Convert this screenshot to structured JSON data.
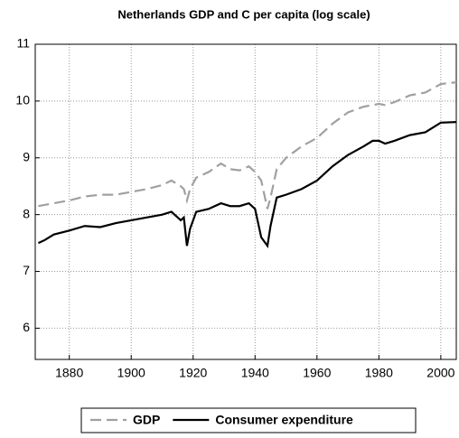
{
  "chart_data": {
    "type": "line",
    "title": "Netherlands GDP and C per capita (log scale)",
    "x": [
      1870,
      1872,
      1875,
      1880,
      1885,
      1890,
      1895,
      1900,
      1905,
      1910,
      1913,
      1916,
      1917,
      1918,
      1919,
      1921,
      1925,
      1929,
      1932,
      1935,
      1938,
      1940,
      1942,
      1944,
      1945,
      1947,
      1950,
      1955,
      1960,
      1965,
      1970,
      1975,
      1978,
      1980,
      1982,
      1985,
      1990,
      1995,
      2000,
      2005
    ],
    "series": [
      {
        "name": "GDP",
        "color": "#a0a0a0",
        "dashed": true,
        "values": [
          8.15,
          8.17,
          8.2,
          8.25,
          8.32,
          8.35,
          8.35,
          8.4,
          8.45,
          8.52,
          8.6,
          8.5,
          8.45,
          8.25,
          8.45,
          8.65,
          8.75,
          8.9,
          8.8,
          8.78,
          8.85,
          8.75,
          8.6,
          8.1,
          8.3,
          8.8,
          9.0,
          9.2,
          9.35,
          9.6,
          9.8,
          9.9,
          9.93,
          9.95,
          9.93,
          9.98,
          10.1,
          10.15,
          10.3,
          10.33
        ]
      },
      {
        "name": "Consumer expenditure",
        "color": "#000000",
        "dashed": false,
        "values": [
          7.5,
          7.55,
          7.65,
          7.72,
          7.8,
          7.78,
          7.85,
          7.9,
          7.95,
          8.0,
          8.05,
          7.9,
          7.95,
          7.45,
          7.75,
          8.05,
          8.1,
          8.2,
          8.15,
          8.15,
          8.2,
          8.1,
          7.6,
          7.45,
          7.8,
          8.3,
          8.35,
          8.45,
          8.6,
          8.85,
          9.05,
          9.2,
          9.3,
          9.3,
          9.25,
          9.3,
          9.4,
          9.45,
          9.62,
          9.63
        ]
      }
    ],
    "xlim": [
      1869,
      2005
    ],
    "xticks": [
      1880,
      1900,
      1920,
      1940,
      1960,
      1980,
      2000
    ],
    "ylim": [
      5.45,
      11
    ],
    "yticks": [
      6,
      7,
      8,
      9,
      10,
      11
    ],
    "grid": true,
    "legend": "bottom"
  }
}
